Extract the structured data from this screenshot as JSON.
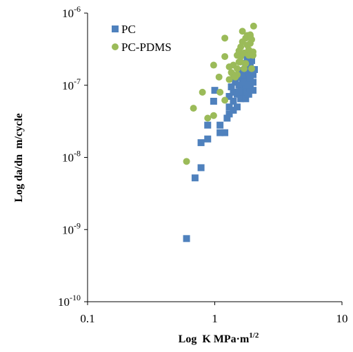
{
  "chart_data": {
    "type": "scatter",
    "xlabel": "Log  K MPa·m",
    "xlabel_sup": "1/2",
    "ylabel": "Log da/dn  m/cycle",
    "x_scale": "log",
    "y_scale": "log",
    "xlim": [
      0.1,
      10
    ],
    "ylim": [
      1e-10,
      1e-06
    ],
    "grid": false,
    "legend_position": "top-left",
    "x_ticks": [
      {
        "value": 0.1,
        "label": "0.1"
      },
      {
        "value": 1,
        "label": "1"
      },
      {
        "value": 10,
        "label": "10"
      }
    ],
    "y_ticks": [
      {
        "value": 1e-10,
        "base": "10",
        "exp": "-10"
      },
      {
        "value": 1e-09,
        "base": "10",
        "exp": "-9"
      },
      {
        "value": 1e-08,
        "base": "10",
        "exp": "-8"
      },
      {
        "value": 1e-07,
        "base": "10",
        "exp": "-7"
      },
      {
        "value": 1e-06,
        "base": "10",
        "exp": "-6"
      }
    ],
    "series": [
      {
        "name": "PC",
        "marker": "square",
        "color": "#4F81BD",
        "points": [
          [
            0.6,
            7.5e-10
          ],
          [
            0.7,
            5.2e-09
          ],
          [
            0.78,
            7.2e-09
          ],
          [
            0.78,
            1.6e-08
          ],
          [
            0.88,
            1.8e-08
          ],
          [
            0.88,
            2.8e-08
          ],
          [
            0.98,
            6e-08
          ],
          [
            1.1,
            2.2e-08
          ],
          [
            1.1,
            2.8e-08
          ],
          [
            1.2,
            2.2e-08
          ],
          [
            1.3,
            4e-08
          ],
          [
            1.3,
            5e-08
          ],
          [
            1.3,
            7e-08
          ],
          [
            1.4,
            4.5e-08
          ],
          [
            1.4,
            6e-08
          ],
          [
            1.4,
            8e-08
          ],
          [
            1.45,
            1.1e-07
          ],
          [
            1.5,
            5e-08
          ],
          [
            1.5,
            7.5e-08
          ],
          [
            1.55,
            1e-07
          ],
          [
            1.6,
            6.5e-08
          ],
          [
            1.6,
            8.5e-08
          ],
          [
            1.65,
            1.2e-07
          ],
          [
            1.7,
            7e-08
          ],
          [
            1.7,
            9e-08
          ],
          [
            1.75,
            6.5e-08
          ],
          [
            1.75,
            1e-07
          ],
          [
            1.8,
            8e-08
          ],
          [
            1.8,
            1.3e-07
          ],
          [
            1.85,
            7.5e-08
          ],
          [
            1.85,
            1.5e-07
          ],
          [
            1.9,
            9e-08
          ],
          [
            1.9,
            1.8e-07
          ],
          [
            2.0,
            8.5e-08
          ],
          [
            2.0,
            1.1e-07
          ],
          [
            2.0,
            1.4e-07
          ],
          [
            2.05,
            1.65e-07
          ],
          [
            1.6,
            1.6e-07
          ],
          [
            1.5,
            1.3e-07
          ],
          [
            1.75,
            2e-07
          ],
          [
            1.95,
            2.2e-07
          ],
          [
            1.8,
            2.4e-07
          ],
          [
            1.65,
            1.4e-07
          ],
          [
            1.55,
            8e-08
          ],
          [
            1.25,
            3.5e-08
          ],
          [
            1.35,
            9.5e-08
          ],
          [
            1.7,
            1.1e-07
          ],
          [
            1.9,
            1.2e-07
          ],
          [
            1.85,
            1e-07
          ],
          [
            1.0,
            8.5e-08
          ]
        ]
      },
      {
        "name": "PC-PDMS",
        "marker": "circle",
        "color": "#9BBB59",
        "points": [
          [
            0.6,
            8.8e-09
          ],
          [
            0.68,
            4.8e-08
          ],
          [
            0.8,
            8e-08
          ],
          [
            0.88,
            3.5e-08
          ],
          [
            0.98,
            3.8e-08
          ],
          [
            0.98,
            1.9e-07
          ],
          [
            1.08,
            1.3e-07
          ],
          [
            1.1,
            8e-08
          ],
          [
            1.2,
            2.5e-07
          ],
          [
            1.2,
            4.5e-07
          ],
          [
            1.2,
            6.2e-08
          ],
          [
            1.3,
            1.2e-07
          ],
          [
            1.3,
            1.8e-07
          ],
          [
            1.35,
            1.5e-07
          ],
          [
            1.4,
            1.4e-07
          ],
          [
            1.4,
            1.9e-07
          ],
          [
            1.45,
            1.3e-07
          ],
          [
            1.5,
            2.6e-07
          ],
          [
            1.5,
            1.7e-07
          ],
          [
            1.55,
            2.1e-07
          ],
          [
            1.55,
            3e-07
          ],
          [
            1.6,
            2.5e-07
          ],
          [
            1.6,
            3.4e-07
          ],
          [
            1.65,
            5.6e-07
          ],
          [
            1.65,
            4e-07
          ],
          [
            1.7,
            2.8e-07
          ],
          [
            1.7,
            1.7e-07
          ],
          [
            1.75,
            4.5e-07
          ],
          [
            1.8,
            3.6e-07
          ],
          [
            1.8,
            4.9e-07
          ],
          [
            1.85,
            2.6e-07
          ],
          [
            1.85,
            3.1e-07
          ],
          [
            1.9,
            4.8e-07
          ],
          [
            1.9,
            5e-07
          ],
          [
            1.95,
            4.3e-07
          ],
          [
            2.0,
            2.9e-07
          ],
          [
            2.0,
            2.6e-07
          ],
          [
            2.02,
            6.6e-07
          ],
          [
            1.75,
            2e-07
          ],
          [
            1.95,
            1.7e-07
          ],
          [
            1.9,
            3.8e-07
          ],
          [
            1.6,
            2.1e-07
          ],
          [
            1.5,
            1.4e-07
          ]
        ]
      }
    ]
  }
}
